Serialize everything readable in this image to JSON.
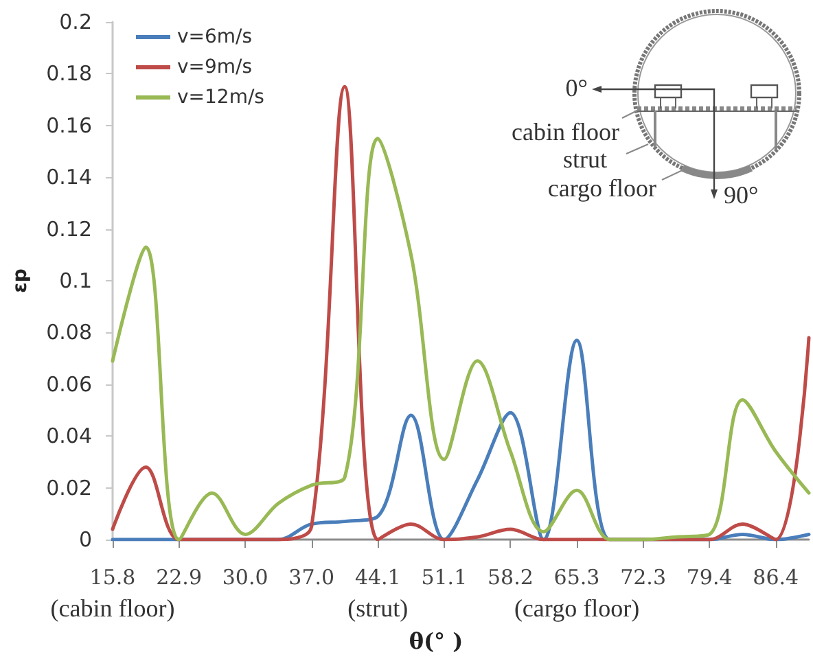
{
  "chart_data": {
    "type": "line",
    "xlabel": "θ(° )",
    "ylabel": "εp",
    "categories": [
      "15.8",
      null,
      "22.9",
      null,
      "30.0",
      null,
      "37.0",
      null,
      "44.1",
      null,
      "51.1",
      null,
      "58.2",
      null,
      "65.3",
      null,
      "72.3",
      null,
      "79.4",
      null,
      "86.4",
      null
    ],
    "series": [
      {
        "name": "v=6m/s",
        "color": "#4a7ebb",
        "values": [
          0,
          0,
          0,
          0,
          0,
          0,
          0.006,
          0.007,
          0.009,
          0.048,
          0,
          0.023,
          0.049,
          0,
          0.077,
          0,
          0,
          0,
          0,
          0.002,
          0,
          0.002
        ]
      },
      {
        "name": "v=9m/s",
        "color": "#be4b48",
        "values": [
          0.004,
          0.028,
          0,
          0,
          0,
          0,
          0.005,
          0.175,
          0,
          0.006,
          0,
          0.001,
          0.004,
          0,
          0,
          0,
          0,
          0,
          0,
          0.006,
          0,
          0.078
        ]
      },
      {
        "name": "v=12m/s",
        "color": "#98b954",
        "values": [
          0.069,
          0.113,
          0,
          0.018,
          0.002,
          0.014,
          0.021,
          0.024,
          0.155,
          0.11,
          0.031,
          0.069,
          0.034,
          0.003,
          0.019,
          0,
          0,
          0.001,
          0.002,
          0.054,
          0.034,
          0.018
        ]
      }
    ],
    "ylim": [
      0,
      0.2
    ],
    "yticks": [
      0,
      0.02,
      0.04,
      0.06,
      0.08,
      0.1,
      0.12,
      0.14,
      0.16,
      0.18,
      0.2
    ],
    "legend": "top left",
    "marker": "none",
    "line_style": "solid",
    "annotations": [
      "(cabin floor)",
      "(strut)",
      "(cargo floor)",
      "0°",
      "cabin floor",
      "strut",
      "cargo floor",
      "90°"
    ]
  }
}
